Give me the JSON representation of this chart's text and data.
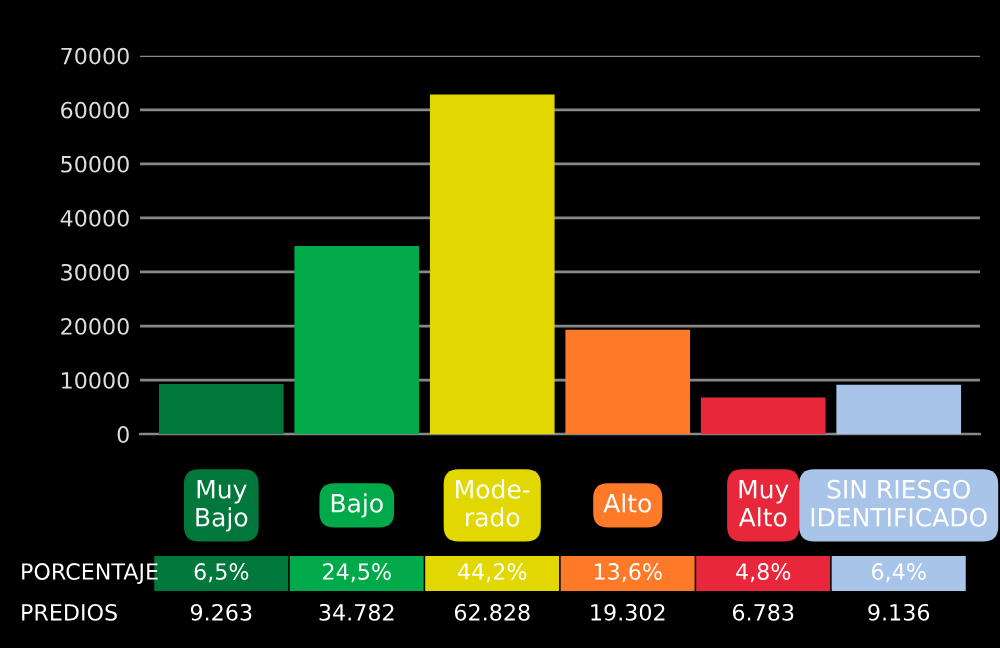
{
  "chart_data": {
    "type": "bar",
    "categories": [
      "Muy\nBajo",
      "Bajo",
      "Mode-\nrado",
      "Alto",
      "Muy\nAlto",
      "SIN RIESGO\nIDENTIFICADO"
    ],
    "values": [
      9263,
      34782,
      62828,
      19302,
      6783,
      9136
    ],
    "value_labels": [
      "9.263",
      "34.782",
      "62.828",
      "19.302",
      "6.783",
      "9.136"
    ],
    "colors": [
      "#00783c",
      "#00aa4a",
      "#e0d800",
      "#ff7a28",
      "#e8283a",
      "#a8c4e8"
    ],
    "ylim": [
      0,
      70000
    ],
    "yticks": [
      0,
      10000,
      20000,
      30000,
      40000,
      50000,
      60000,
      70000
    ],
    "grid": "y",
    "annotations": [
      "PORCENTAJE",
      "PREDIOS",
      "6,5%",
      "24,5%",
      "44,2%",
      "13,6%",
      "4,8%",
      "6,4%"
    ]
  }
}
